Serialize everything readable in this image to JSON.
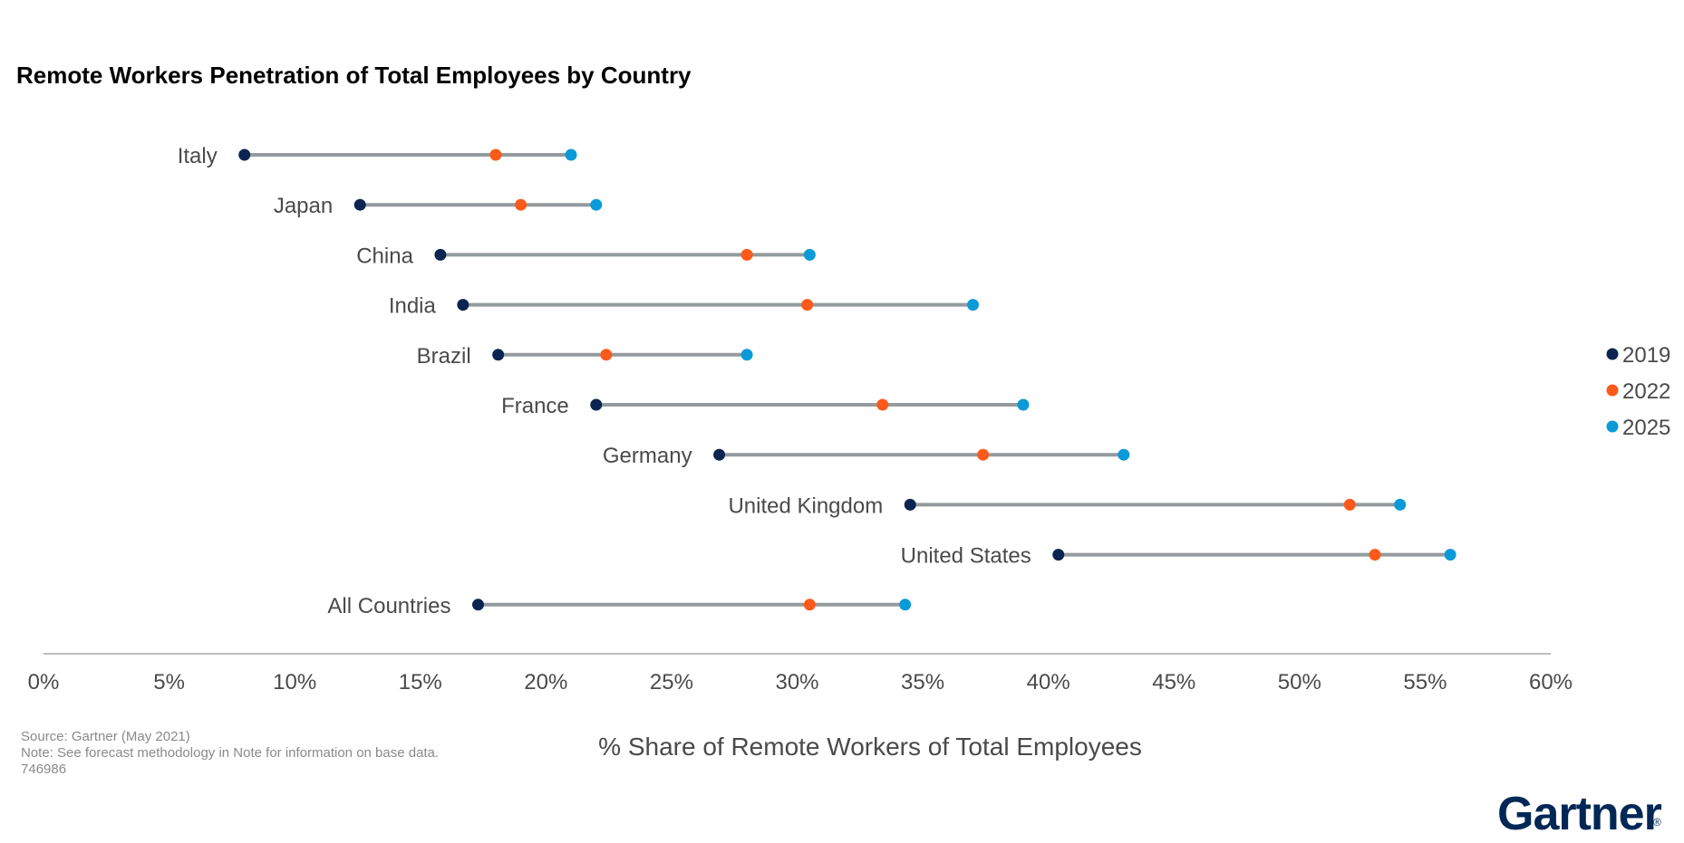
{
  "chart_data": {
    "type": "dumbbell",
    "title": "Remote Workers Penetration of Total Employees by Country",
    "xlabel": "% Share of Remote Workers of Total Employees",
    "xlim": [
      0,
      60
    ],
    "xticks": [
      "0%",
      "5%",
      "10%",
      "15%",
      "20%",
      "25%",
      "30%",
      "35%",
      "40%",
      "45%",
      "50%",
      "55%",
      "60%"
    ],
    "legend_position": "right",
    "categories": [
      "Italy",
      "Japan",
      "China",
      "India",
      "Brazil",
      "France",
      "Germany",
      "United Kingdom",
      "United States",
      "All Countries"
    ],
    "series": [
      {
        "name": "2019",
        "color": "#0b2550",
        "values": [
          8.0,
          12.6,
          15.8,
          16.7,
          18.1,
          22.0,
          26.9,
          34.5,
          40.4,
          17.3
        ]
      },
      {
        "name": "2022",
        "color": "#fc5a1a",
        "values": [
          18.0,
          19.0,
          28.0,
          30.4,
          22.4,
          33.4,
          37.4,
          52.0,
          53.0,
          30.5
        ]
      },
      {
        "name": "2025",
        "color": "#0a9ad8",
        "values": [
          21.0,
          22.0,
          30.5,
          37.0,
          28.0,
          39.0,
          43.0,
          54.0,
          56.0,
          34.3
        ]
      }
    ],
    "connector_color": "#939b9e",
    "grid": false
  },
  "footnotes": [
    "Source: Gartner (May 2021)",
    "Note: See forecast methodology in Note for information on base data.",
    "746986"
  ],
  "logo": {
    "text": "Gartner",
    "mark": "®",
    "color": "#002856"
  }
}
